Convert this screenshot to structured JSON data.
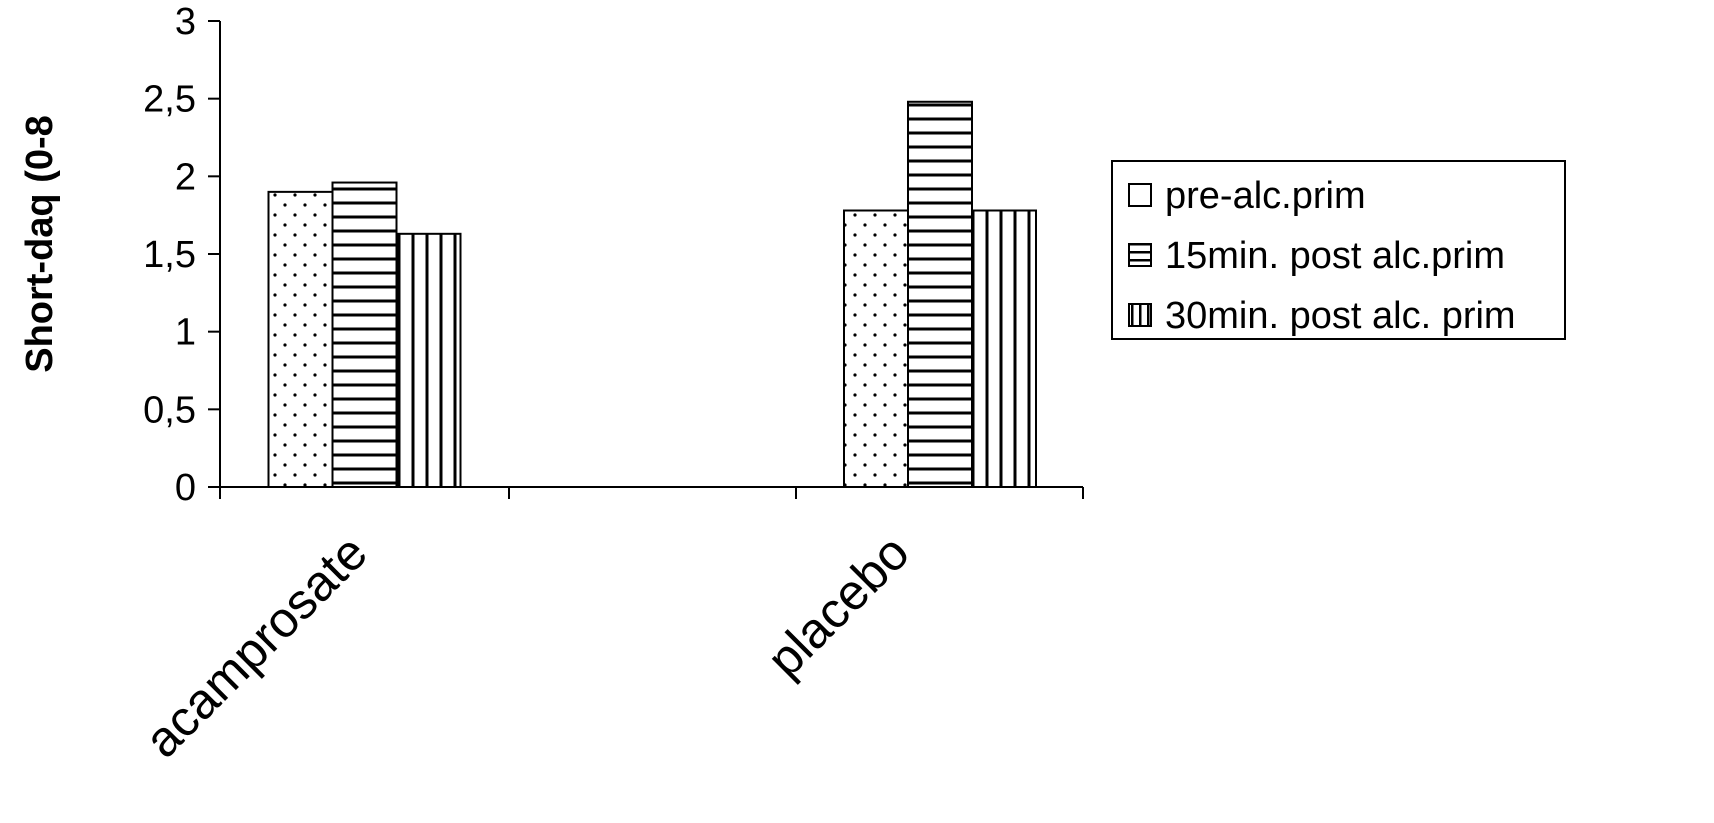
{
  "chart_data": {
    "type": "bar",
    "ylabel": "Short-daq (0-8",
    "xlabel": "",
    "title": "",
    "categories": [
      "acamprosate",
      "placebo"
    ],
    "series": [
      {
        "name": "pre-alc.prim",
        "values": [
          1.9,
          1.78
        ],
        "pattern": "dots"
      },
      {
        "name": "15min. post alc.prim",
        "values": [
          1.96,
          2.48
        ],
        "pattern": "horizontal-lines"
      },
      {
        "name": "30min. post alc. prim",
        "values": [
          1.63,
          1.78
        ],
        "pattern": "vertical-lines"
      }
    ],
    "ylim": [
      0,
      3
    ],
    "yticks": [
      0,
      0.5,
      1,
      1.5,
      2,
      2.5,
      3
    ],
    "ytick_labels": [
      "0",
      "0,5",
      "1",
      "1,5",
      "2",
      "2,5",
      "3"
    ],
    "grid": false,
    "legend_position": "right",
    "colors": {
      "bar_fill": "#ffffff",
      "bar_stroke": "#000000",
      "pattern": "#000000"
    }
  }
}
